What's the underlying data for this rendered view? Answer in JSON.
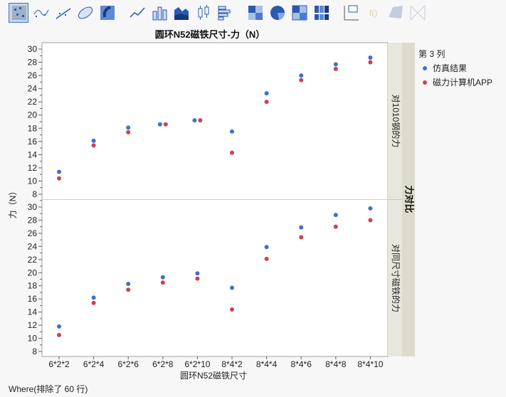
{
  "toolbar": {
    "items": [
      "points",
      "smoother",
      "line-of-fit",
      "ellipse",
      "contour",
      "line",
      "bar",
      "area",
      "box-plot",
      "histogram",
      "heatmap",
      "pie",
      "treemap",
      "mosaic",
      "caption-box",
      "formula",
      "map-shapes",
      "parallel"
    ],
    "selected": "points",
    "disabled": [
      "formula",
      "map-shapes",
      "parallel"
    ]
  },
  "colors": {
    "series_1": "#3f6fd1",
    "series_2": "#d04050",
    "strip_inner": "#e8e7de",
    "strip_outer": "#dcdbcd"
  },
  "footer": "Where(排除了 60 行)",
  "chart_data": {
    "type": "scatter",
    "title": "圆环N52磁铁尺寸-力（N）",
    "xlabel": "圆环N52磁铁尺寸",
    "ylabel": "力（N）",
    "categories": [
      "6*2*2",
      "6*2*4",
      "6*2*6",
      "6*2*8",
      "6*2*10",
      "8*4*2",
      "8*4*4",
      "8*4*6",
      "8*4*8",
      "8*4*10"
    ],
    "ylim": [
      7,
      31
    ],
    "yticks": [
      8,
      10,
      12,
      14,
      16,
      18,
      20,
      22,
      24,
      26,
      28,
      30
    ],
    "group_label": "力对比",
    "legend": {
      "title": "第 3 列",
      "placement": "right",
      "entries": [
        "仿真结果",
        "磁力计算机APP"
      ]
    },
    "panels": [
      {
        "label": "对1010钢的力",
        "series": [
          {
            "name": "仿真结果",
            "values": [
              11.4,
              16.1,
              18.1,
              18.6,
              19.2,
              17.5,
              23.3,
              26.0,
              27.7,
              28.7
            ]
          },
          {
            "name": "磁力计算机APP",
            "values": [
              10.4,
              15.4,
              17.4,
              18.6,
              19.2,
              14.3,
              22.0,
              25.3,
              27.0,
              28.0
            ]
          }
        ]
      },
      {
        "label": "对同尺寸磁铁的力",
        "series": [
          {
            "name": "仿真结果",
            "values": [
              11.8,
              16.2,
              18.3,
              19.3,
              19.9,
              17.7,
              23.9,
              26.9,
              28.8,
              29.8
            ]
          },
          {
            "name": "磁力计算机APP",
            "values": [
              10.5,
              15.4,
              17.4,
              18.5,
              19.1,
              14.4,
              22.1,
              25.4,
              27.0,
              28.0
            ]
          }
        ]
      }
    ]
  }
}
